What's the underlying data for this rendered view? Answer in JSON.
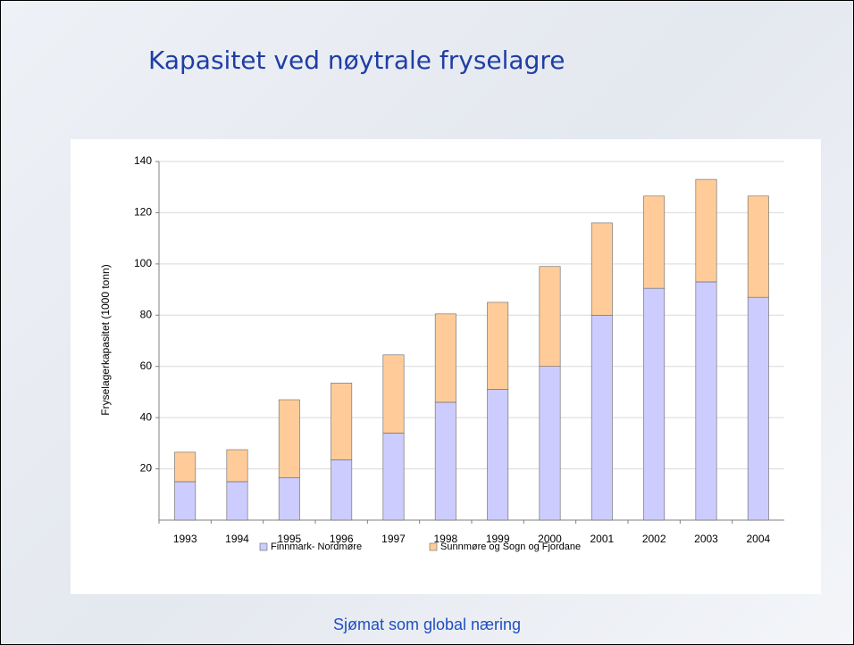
{
  "slide_title": "Kapasitet ved nøytrale fryselagre",
  "footer": "Sjømat som global næring",
  "chart_data": {
    "type": "stacked_bar",
    "y_label": "Fryselagerkapasitet (1000 tonn)",
    "categories": [
      "1993",
      "1994",
      "1995",
      "1996",
      "1997",
      "1998",
      "1999",
      "2000",
      "2001",
      "2002",
      "2003",
      "2004"
    ],
    "series": [
      {
        "name": "Finnmark- Nordmøre",
        "color": "#ccccff",
        "values": [
          15,
          15,
          16.5,
          23.5,
          34,
          46,
          51,
          60,
          80,
          90.5,
          93,
          87
        ]
      },
      {
        "name": "Sunnmøre og Sogn og Fjordane",
        "color": "#ffcc99",
        "values": [
          11.5,
          12.5,
          30.5,
          30,
          30.5,
          34.5,
          34,
          39,
          36,
          36,
          40,
          39.5
        ]
      }
    ],
    "ylim": [
      0,
      140
    ],
    "yticks": [
      20,
      40,
      60,
      80,
      100,
      120,
      140
    ],
    "grid": true,
    "legend": "bottom"
  }
}
